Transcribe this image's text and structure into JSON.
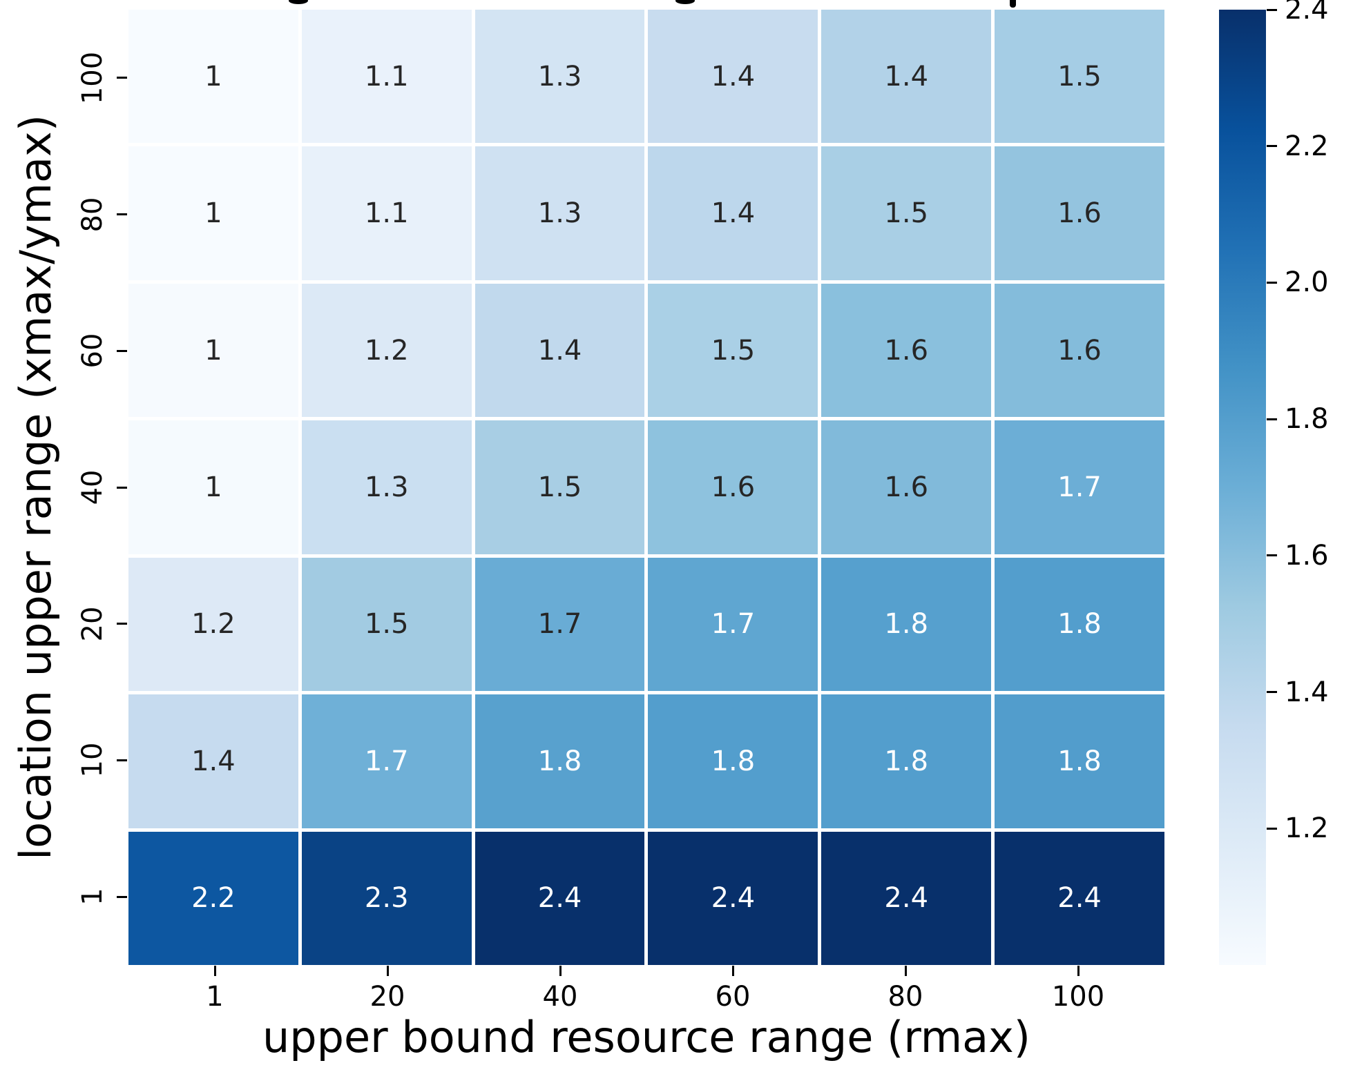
{
  "figure": {
    "background": "#ffffff",
    "clipped_title": "title text is cut off at the top edge; only three letter-descender marks are visible"
  },
  "chart_data": {
    "type": "heatmap",
    "title": "",
    "xlabel": "upper bound resource range (rmax)",
    "ylabel": "location upper range (xmax/ymax)",
    "x_tick_labels": [
      "1",
      "20",
      "40",
      "60",
      "80",
      "100"
    ],
    "y_tick_labels": [
      "100",
      "80",
      "60",
      "40",
      "20",
      "10",
      "1"
    ],
    "values": [
      [
        1,
        1.1,
        1.3,
        1.4,
        1.4,
        1.5
      ],
      [
        1,
        1.1,
        1.3,
        1.4,
        1.5,
        1.6
      ],
      [
        1,
        1.2,
        1.4,
        1.5,
        1.6,
        1.6
      ],
      [
        1,
        1.3,
        1.5,
        1.6,
        1.6,
        1.7
      ],
      [
        1.2,
        1.5,
        1.7,
        1.7,
        1.8,
        1.8
      ],
      [
        1.4,
        1.7,
        1.8,
        1.8,
        1.8,
        1.8
      ],
      [
        2.2,
        2.3,
        2.4,
        2.4,
        2.4,
        2.4
      ]
    ],
    "rows": [
      {
        "y": "100",
        "cells": [
          {
            "label": "1",
            "bg": "#f7fbff",
            "fg": "#262626"
          },
          {
            "label": "1.1",
            "bg": "#eaf2fb",
            "fg": "#262626"
          },
          {
            "label": "1.3",
            "bg": "#d3e4f3",
            "fg": "#262626"
          },
          {
            "label": "1.4",
            "bg": "#c8dcef",
            "fg": "#262626"
          },
          {
            "label": "1.4",
            "bg": "#b2d2e8",
            "fg": "#262626"
          },
          {
            "label": "1.5",
            "bg": "#a5cde5",
            "fg": "#262626"
          }
        ]
      },
      {
        "y": "80",
        "cells": [
          {
            "label": "1",
            "bg": "#f7fbff",
            "fg": "#262626"
          },
          {
            "label": "1.1",
            "bg": "#e8f1fa",
            "fg": "#262626"
          },
          {
            "label": "1.3",
            "bg": "#cfe1f2",
            "fg": "#262626"
          },
          {
            "label": "1.4",
            "bg": "#bdd7ec",
            "fg": "#262626"
          },
          {
            "label": "1.5",
            "bg": "#a9cfe5",
            "fg": "#262626"
          },
          {
            "label": "1.6",
            "bg": "#94c4df",
            "fg": "#262626"
          }
        ]
      },
      {
        "y": "60",
        "cells": [
          {
            "label": "1",
            "bg": "#f6fafe",
            "fg": "#262626"
          },
          {
            "label": "1.2",
            "bg": "#dce9f6",
            "fg": "#262626"
          },
          {
            "label": "1.4",
            "bg": "#c1d9ed",
            "fg": "#262626"
          },
          {
            "label": "1.5",
            "bg": "#aad0e6",
            "fg": "#262626"
          },
          {
            "label": "1.6",
            "bg": "#8ac0dd",
            "fg": "#262626"
          },
          {
            "label": "1.6",
            "bg": "#84bcdb",
            "fg": "#262626"
          }
        ]
      },
      {
        "y": "40",
        "cells": [
          {
            "label": "1",
            "bg": "#f5fafe",
            "fg": "#262626"
          },
          {
            "label": "1.3",
            "bg": "#cadff1",
            "fg": "#262626"
          },
          {
            "label": "1.5",
            "bg": "#a8cee4",
            "fg": "#262626"
          },
          {
            "label": "1.6",
            "bg": "#8ec2de",
            "fg": "#262626"
          },
          {
            "label": "1.6",
            "bg": "#81bada",
            "fg": "#262626"
          },
          {
            "label": "1.7",
            "bg": "#6caed6",
            "fg": "#ffffff"
          }
        ]
      },
      {
        "y": "20",
        "cells": [
          {
            "label": "1.2",
            "bg": "#dde9f6",
            "fg": "#262626"
          },
          {
            "label": "1.5",
            "bg": "#a2cbe2",
            "fg": "#262626"
          },
          {
            "label": "1.7",
            "bg": "#69acd5",
            "fg": "#262626"
          },
          {
            "label": "1.7",
            "bg": "#5fa6d1",
            "fg": "#ffffff"
          },
          {
            "label": "1.8",
            "bg": "#56a0ce",
            "fg": "#ffffff"
          },
          {
            "label": "1.8",
            "bg": "#539ecd",
            "fg": "#ffffff"
          }
        ]
      },
      {
        "y": "10",
        "cells": [
          {
            "label": "1.4",
            "bg": "#c6dbef",
            "fg": "#262626"
          },
          {
            "label": "1.7",
            "bg": "#6fb0d7",
            "fg": "#ffffff"
          },
          {
            "label": "1.8",
            "bg": "#58a1ce",
            "fg": "#ffffff"
          },
          {
            "label": "1.8",
            "bg": "#539ecd",
            "fg": "#ffffff"
          },
          {
            "label": "1.8",
            "bg": "#539ecd",
            "fg": "#ffffff"
          },
          {
            "label": "1.8",
            "bg": "#529dcc",
            "fg": "#ffffff"
          }
        ]
      },
      {
        "y": "1",
        "cells": [
          {
            "label": "2.2",
            "bg": "#0d57a1",
            "fg": "#ffffff"
          },
          {
            "label": "2.3",
            "bg": "#0a4385",
            "fg": "#ffffff"
          },
          {
            "label": "2.4",
            "bg": "#08306b",
            "fg": "#ffffff"
          },
          {
            "label": "2.4",
            "bg": "#08306b",
            "fg": "#ffffff"
          },
          {
            "label": "2.4",
            "bg": "#08306b",
            "fg": "#ffffff"
          },
          {
            "label": "2.4",
            "bg": "#08306b",
            "fg": "#ffffff"
          }
        ]
      }
    ],
    "colorbar": {
      "colormap": "Blues",
      "vmin": 1.0,
      "vmax": 2.4,
      "tick_labels": [
        "2.4",
        "2.2",
        "2.0",
        "1.8",
        "1.6",
        "1.4",
        "1.2"
      ],
      "gradient_top_to_bottom": [
        "#08306b",
        "#08519c",
        "#2171b5",
        "#4292c6",
        "#6baed6",
        "#9ecae1",
        "#c6dbef",
        "#deebf7",
        "#f7fbff"
      ],
      "position": "right"
    },
    "annotation_text_colors": {
      "dark": "#262626",
      "light": "#ffffff"
    },
    "grid_line_color": "#ffffff",
    "legend": "none"
  }
}
